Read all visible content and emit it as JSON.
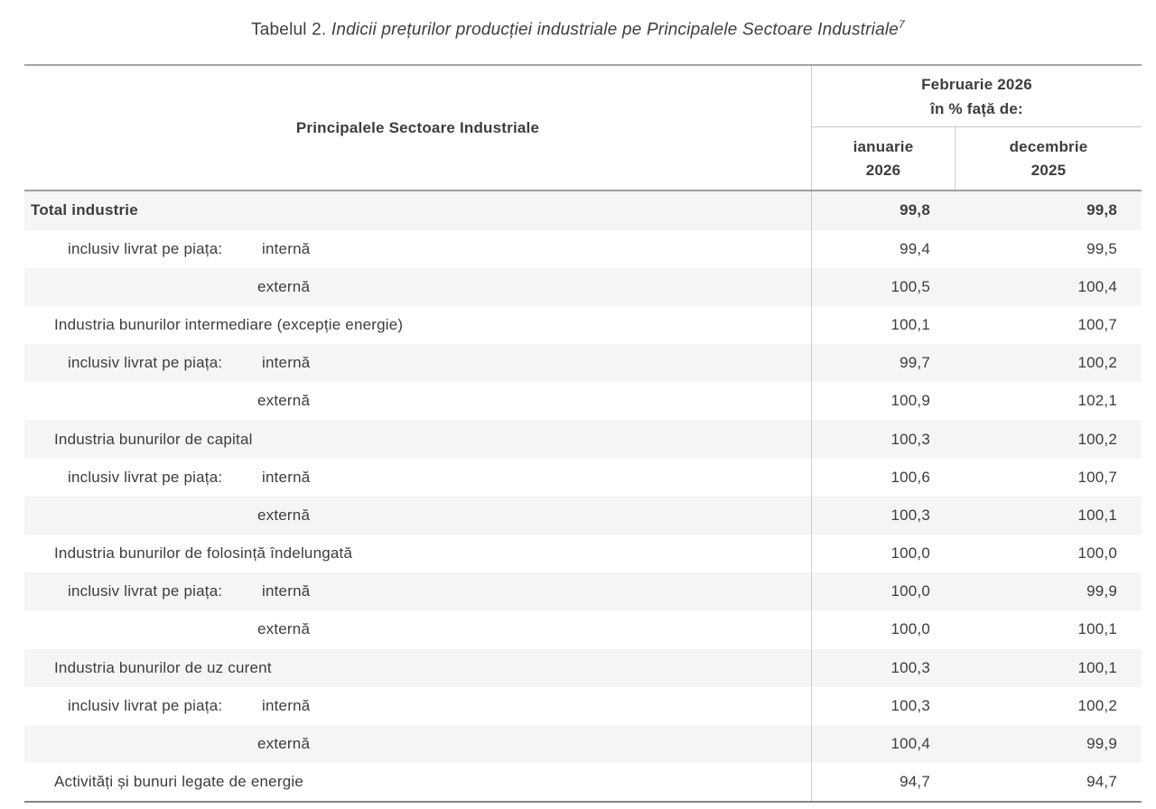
{
  "title": {
    "prefix": "Tabelul 2. ",
    "main": "Indicii prețurilor producției industriale pe Principalele Sectoare Industriale",
    "footnote_ref": "7"
  },
  "table": {
    "sector_header": "Principalele Sectoare Industriale",
    "period_header": {
      "line1": "Februarie 2026",
      "line2": "în % față de:"
    },
    "column_headers": [
      {
        "line1": "ianuarie",
        "line2": "2026"
      },
      {
        "line1": "decembrie",
        "line2": "2025"
      }
    ],
    "rows": [
      {
        "type": "total",
        "label": "Total industrie",
        "jan_2026": "99,8",
        "dec_2025": "99,8"
      },
      {
        "type": "inner",
        "prefix": "inclusiv livrat pe piața:",
        "label": "internă",
        "jan_2026": "99,4",
        "dec_2025": "99,5"
      },
      {
        "type": "outer",
        "label": "externă",
        "jan_2026": "100,5",
        "dec_2025": "100,4"
      },
      {
        "type": "group",
        "label": "Industria bunurilor intermediare (excepție energie)",
        "jan_2026": "100,1",
        "dec_2025": "100,7"
      },
      {
        "type": "inner",
        "prefix": "inclusiv livrat pe piața:",
        "label": "internă",
        "jan_2026": "99,7",
        "dec_2025": "100,2"
      },
      {
        "type": "outer",
        "label": "externă",
        "jan_2026": "100,9",
        "dec_2025": "102,1"
      },
      {
        "type": "group",
        "label": "Industria bunurilor de capital",
        "jan_2026": "100,3",
        "dec_2025": "100,2"
      },
      {
        "type": "inner",
        "prefix": "inclusiv livrat pe piața:",
        "label": "internă",
        "jan_2026": "100,6",
        "dec_2025": "100,7"
      },
      {
        "type": "outer",
        "label": "externă",
        "jan_2026": "100,3",
        "dec_2025": "100,1"
      },
      {
        "type": "group",
        "label": "Industria bunurilor de folosință îndelungată",
        "jan_2026": "100,0",
        "dec_2025": "100,0"
      },
      {
        "type": "inner",
        "prefix": "inclusiv livrat pe piața:",
        "label": "internă",
        "jan_2026": "100,0",
        "dec_2025": "99,9"
      },
      {
        "type": "outer",
        "label": "externă",
        "jan_2026": "100,0",
        "dec_2025": "100,1"
      },
      {
        "type": "group",
        "label": "Industria bunurilor de uz curent",
        "jan_2026": "100,3",
        "dec_2025": "100,1"
      },
      {
        "type": "inner",
        "prefix": "inclusiv livrat pe piața:",
        "label": "internă",
        "jan_2026": "100,3",
        "dec_2025": "100,2"
      },
      {
        "type": "outer",
        "label": "externă",
        "jan_2026": "100,4",
        "dec_2025": "99,9"
      },
      {
        "type": "group",
        "label": "Activități și bunuri legate de energie",
        "jan_2026": "94,7",
        "dec_2025": "94,7"
      }
    ]
  },
  "colors": {
    "zebra_row": "#f5f5f5",
    "border_strong": "#a5a5a5",
    "border_header_bottom": "#9e9e9e",
    "border_table_bottom": "#858585",
    "divider_light": "#cccccc",
    "text": "#3d3d3d",
    "background": "#ffffff"
  }
}
